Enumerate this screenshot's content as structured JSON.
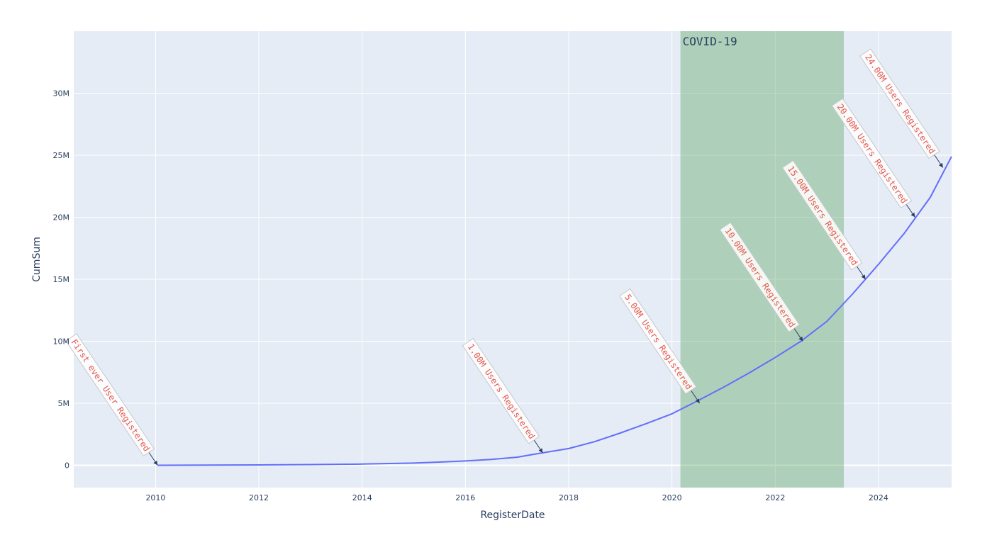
{
  "chart_data": {
    "type": "line",
    "xlabel": "RegisterDate",
    "ylabel": "CumSum",
    "xlim": [
      "2008-06-01",
      "2025-06-01"
    ],
    "ylim": [
      -1800000,
      35000000
    ],
    "x_ticks": [
      {
        "value": "2010-01-01",
        "label": "2010"
      },
      {
        "value": "2012-01-01",
        "label": "2012"
      },
      {
        "value": "2014-01-01",
        "label": "2014"
      },
      {
        "value": "2016-01-01",
        "label": "2016"
      },
      {
        "value": "2018-01-01",
        "label": "2018"
      },
      {
        "value": "2020-01-01",
        "label": "2020"
      },
      {
        "value": "2022-01-01",
        "label": "2022"
      },
      {
        "value": "2024-01-01",
        "label": "2024"
      }
    ],
    "y_ticks": [
      {
        "value": 0,
        "label": "0"
      },
      {
        "value": 5000000,
        "label": "5M"
      },
      {
        "value": 10000000,
        "label": "10M"
      },
      {
        "value": 15000000,
        "label": "15M"
      },
      {
        "value": 20000000,
        "label": "20M"
      },
      {
        "value": 25000000,
        "label": "25M"
      },
      {
        "value": 30000000,
        "label": "30M"
      }
    ],
    "grid": true,
    "series": [
      {
        "color": "#636efa",
        "x": [
          "2010-01-15",
          "2011-01-01",
          "2012-01-01",
          "2013-01-01",
          "2014-01-01",
          "2015-01-01",
          "2015-07-01",
          "2016-01-01",
          "2016-07-01",
          "2017-01-01",
          "2017-06-01",
          "2018-01-01",
          "2018-07-01",
          "2019-01-01",
          "2019-07-01",
          "2020-01-01",
          "2020-07-01",
          "2021-01-01",
          "2021-07-01",
          "2022-01-01",
          "2022-07-01",
          "2023-01-01",
          "2023-07-01",
          "2024-01-01",
          "2024-07-01",
          "2025-01-01",
          "2025-06-01"
        ],
        "y": [
          0,
          10000,
          30000,
          60000,
          100000,
          180000,
          260000,
          350000,
          470000,
          650000,
          950000,
          1350000,
          1900000,
          2600000,
          3350000,
          4150000,
          5200000,
          6300000,
          7450000,
          8700000,
          10000000,
          11600000,
          13800000,
          16200000,
          18700000,
          21600000,
          24900000
        ]
      }
    ],
    "shapes": [
      {
        "type": "vrect",
        "x0": "2020-03-01",
        "x1": "2023-05-01",
        "color": "#2e8b2e",
        "opacity": 0.3,
        "label": "COVID-19"
      }
    ],
    "annotations": [
      {
        "x": "2010-01-15",
        "y": 0,
        "text": "First ever User Registered"
      },
      {
        "x": "2017-07-01",
        "y": 1000000,
        "text": "1.00M Users Registered"
      },
      {
        "x": "2020-07-15",
        "y": 5000000,
        "text": "5.00M Users Registered"
      },
      {
        "x": "2022-07-15",
        "y": 10000000,
        "text": "10.00M Users Registered"
      },
      {
        "x": "2023-10-01",
        "y": 15000000,
        "text": "15.00M Users Registered"
      },
      {
        "x": "2024-09-15",
        "y": 20000000,
        "text": "20.00M Users Registered"
      },
      {
        "x": "2025-04-01",
        "y": 24000000,
        "text": "24.00M Users Registered"
      }
    ],
    "colors": {
      "plot_bg": "#e5ecf6",
      "grid": "#ffffff",
      "line": "#636efa",
      "annotation_text": "#e8574a",
      "arrow": "#2a3f5f"
    }
  }
}
